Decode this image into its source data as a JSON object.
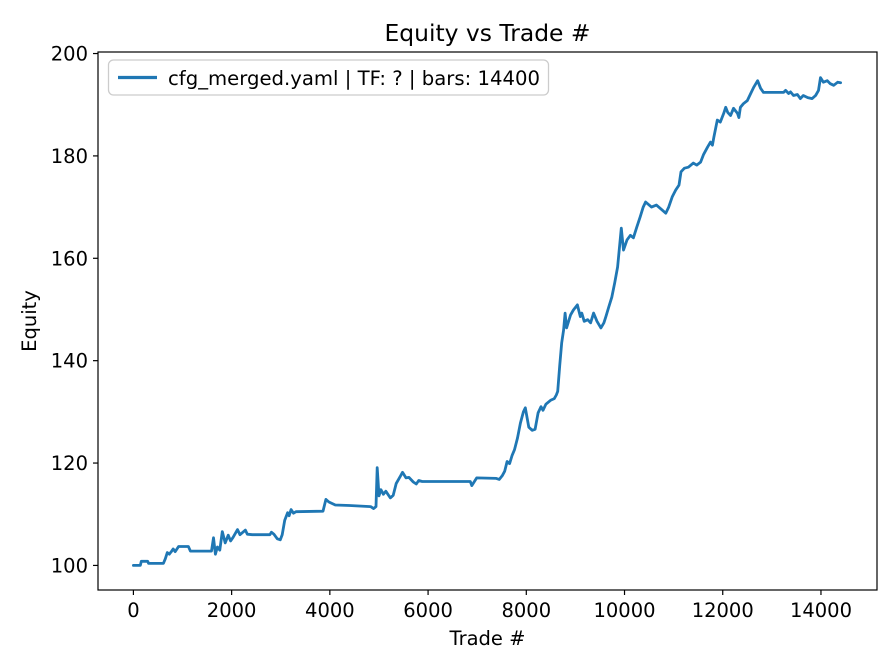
{
  "chart_data": {
    "type": "line",
    "title": "Equity vs Trade #",
    "xlabel": "Trade #",
    "ylabel": "Equity",
    "legend": {
      "label": "cfg_merged.yaml | TF: ? | bars: 14400",
      "position": "upper left"
    },
    "line_color": "#1f77b4",
    "background_color": "#ffffff",
    "spine_color": "#000000",
    "legend_edge_color": "#cccccc",
    "grid": false,
    "x_ticks": [
      0,
      2000,
      4000,
      6000,
      8000,
      10000,
      12000,
      14000
    ],
    "y_ticks": [
      100,
      120,
      140,
      160,
      180,
      200
    ],
    "xlim": [
      -721,
      15141
    ],
    "ylim": [
      95.2,
      200.3
    ],
    "series": [
      {
        "name": "cfg_merged.yaml | TF: ? | bars: 14400",
        "points": [
          [
            0,
            100
          ],
          [
            140,
            100
          ],
          [
            160,
            100.8
          ],
          [
            290,
            100.8
          ],
          [
            310,
            100.4
          ],
          [
            610,
            100.4
          ],
          [
            650,
            101.3
          ],
          [
            690,
            102.5
          ],
          [
            730,
            102.2
          ],
          [
            780,
            102.8
          ],
          [
            810,
            103.2
          ],
          [
            850,
            102.7
          ],
          [
            920,
            103.7
          ],
          [
            1120,
            103.7
          ],
          [
            1160,
            102.8
          ],
          [
            1590,
            102.8
          ],
          [
            1630,
            105.4
          ],
          [
            1670,
            102.2
          ],
          [
            1710,
            103.6
          ],
          [
            1760,
            103
          ],
          [
            1810,
            106.6
          ],
          [
            1870,
            104.4
          ],
          [
            1930,
            105.9
          ],
          [
            1980,
            104.8
          ],
          [
            2030,
            105.5
          ],
          [
            2120,
            107
          ],
          [
            2170,
            106
          ],
          [
            2280,
            106.9
          ],
          [
            2320,
            106.1
          ],
          [
            2420,
            106
          ],
          [
            2780,
            106
          ],
          [
            2810,
            106.5
          ],
          [
            2860,
            106.1
          ],
          [
            2930,
            105.2
          ],
          [
            2990,
            105
          ],
          [
            3030,
            106
          ],
          [
            3080,
            108.8
          ],
          [
            3140,
            110.3
          ],
          [
            3170,
            109.7
          ],
          [
            3210,
            110.9
          ],
          [
            3260,
            110.2
          ],
          [
            3310,
            110.5
          ],
          [
            3860,
            110.6
          ],
          [
            3920,
            112.9
          ],
          [
            3980,
            112.4
          ],
          [
            4110,
            111.8
          ],
          [
            4400,
            111.7
          ],
          [
            4830,
            111.5
          ],
          [
            4890,
            111.1
          ],
          [
            4940,
            111.5
          ],
          [
            4965,
            119.1
          ],
          [
            5000,
            113.6
          ],
          [
            5040,
            114.8
          ],
          [
            5090,
            113.9
          ],
          [
            5140,
            114.5
          ],
          [
            5230,
            113.2
          ],
          [
            5290,
            113.7
          ],
          [
            5350,
            116
          ],
          [
            5440,
            117.5
          ],
          [
            5480,
            118.2
          ],
          [
            5550,
            117.1
          ],
          [
            5610,
            117.2
          ],
          [
            5700,
            116.3
          ],
          [
            5760,
            115.9
          ],
          [
            5810,
            116.6
          ],
          [
            5880,
            116.4
          ],
          [
            6860,
            116.4
          ],
          [
            6890,
            115.6
          ],
          [
            6990,
            117.1
          ],
          [
            7390,
            117
          ],
          [
            7450,
            116.8
          ],
          [
            7510,
            117.5
          ],
          [
            7560,
            118.4
          ],
          [
            7610,
            120.3
          ],
          [
            7660,
            119.9
          ],
          [
            7710,
            121.5
          ],
          [
            7760,
            122.6
          ],
          [
            7820,
            124.9
          ],
          [
            7880,
            127.8
          ],
          [
            7940,
            130
          ],
          [
            7980,
            130.8
          ],
          [
            8050,
            127
          ],
          [
            8120,
            126.4
          ],
          [
            8180,
            126.6
          ],
          [
            8240,
            129.8
          ],
          [
            8300,
            131
          ],
          [
            8340,
            130.3
          ],
          [
            8400,
            131.5
          ],
          [
            8500,
            132.3
          ],
          [
            8570,
            132.6
          ],
          [
            8610,
            133.3
          ],
          [
            8640,
            134
          ],
          [
            8680,
            139
          ],
          [
            8720,
            143.5
          ],
          [
            8760,
            146
          ],
          [
            8790,
            149.3
          ],
          [
            8820,
            146.4
          ],
          [
            8900,
            148.9
          ],
          [
            8960,
            149.9
          ],
          [
            9040,
            150.9
          ],
          [
            9100,
            148.6
          ],
          [
            9130,
            149.3
          ],
          [
            9180,
            147.7
          ],
          [
            9250,
            148
          ],
          [
            9310,
            147.4
          ],
          [
            9370,
            149.3
          ],
          [
            9440,
            147.7
          ],
          [
            9520,
            146.4
          ],
          [
            9580,
            147.4
          ],
          [
            9620,
            148.6
          ],
          [
            9680,
            150.5
          ],
          [
            9740,
            152.4
          ],
          [
            9800,
            155.2
          ],
          [
            9860,
            158.3
          ],
          [
            9935,
            165.9
          ],
          [
            9980,
            161.6
          ],
          [
            10050,
            163.6
          ],
          [
            10120,
            164.5
          ],
          [
            10180,
            164
          ],
          [
            10250,
            166.1
          ],
          [
            10320,
            168.1
          ],
          [
            10380,
            170
          ],
          [
            10430,
            171
          ],
          [
            10550,
            170
          ],
          [
            10650,
            170.4
          ],
          [
            10720,
            169.8
          ],
          [
            10840,
            168.8
          ],
          [
            10900,
            170
          ],
          [
            10970,
            172
          ],
          [
            11040,
            173.3
          ],
          [
            11110,
            174.3
          ],
          [
            11150,
            176.9
          ],
          [
            11220,
            177.6
          ],
          [
            11300,
            177.8
          ],
          [
            11400,
            178.6
          ],
          [
            11470,
            178.2
          ],
          [
            11550,
            178.8
          ],
          [
            11610,
            180.3
          ],
          [
            11690,
            181.7
          ],
          [
            11750,
            182.7
          ],
          [
            11790,
            182.1
          ],
          [
            11820,
            183.7
          ],
          [
            11890,
            187
          ],
          [
            11950,
            186.6
          ],
          [
            12020,
            188.3
          ],
          [
            12060,
            189.5
          ],
          [
            12100,
            188.5
          ],
          [
            12160,
            187.9
          ],
          [
            12220,
            189.3
          ],
          [
            12300,
            188.3
          ],
          [
            12330,
            187.5
          ],
          [
            12360,
            189.5
          ],
          [
            12420,
            190.2
          ],
          [
            12500,
            190.8
          ],
          [
            12570,
            192.2
          ],
          [
            12630,
            193.4
          ],
          [
            12710,
            194.7
          ],
          [
            12770,
            193.2
          ],
          [
            12830,
            192.4
          ],
          [
            13240,
            192.4
          ],
          [
            13280,
            192.8
          ],
          [
            13340,
            192.2
          ],
          [
            13380,
            192.5
          ],
          [
            13440,
            191.8
          ],
          [
            13520,
            192
          ],
          [
            13580,
            191.2
          ],
          [
            13640,
            191.8
          ],
          [
            13730,
            191.4
          ],
          [
            13820,
            191.2
          ],
          [
            13890,
            191.8
          ],
          [
            13950,
            192.8
          ],
          [
            13990,
            195.3
          ],
          [
            14050,
            194.4
          ],
          [
            14130,
            194.7
          ],
          [
            14190,
            194.1
          ],
          [
            14260,
            193.8
          ],
          [
            14340,
            194.4
          ],
          [
            14400,
            194.3
          ]
        ]
      }
    ]
  }
}
